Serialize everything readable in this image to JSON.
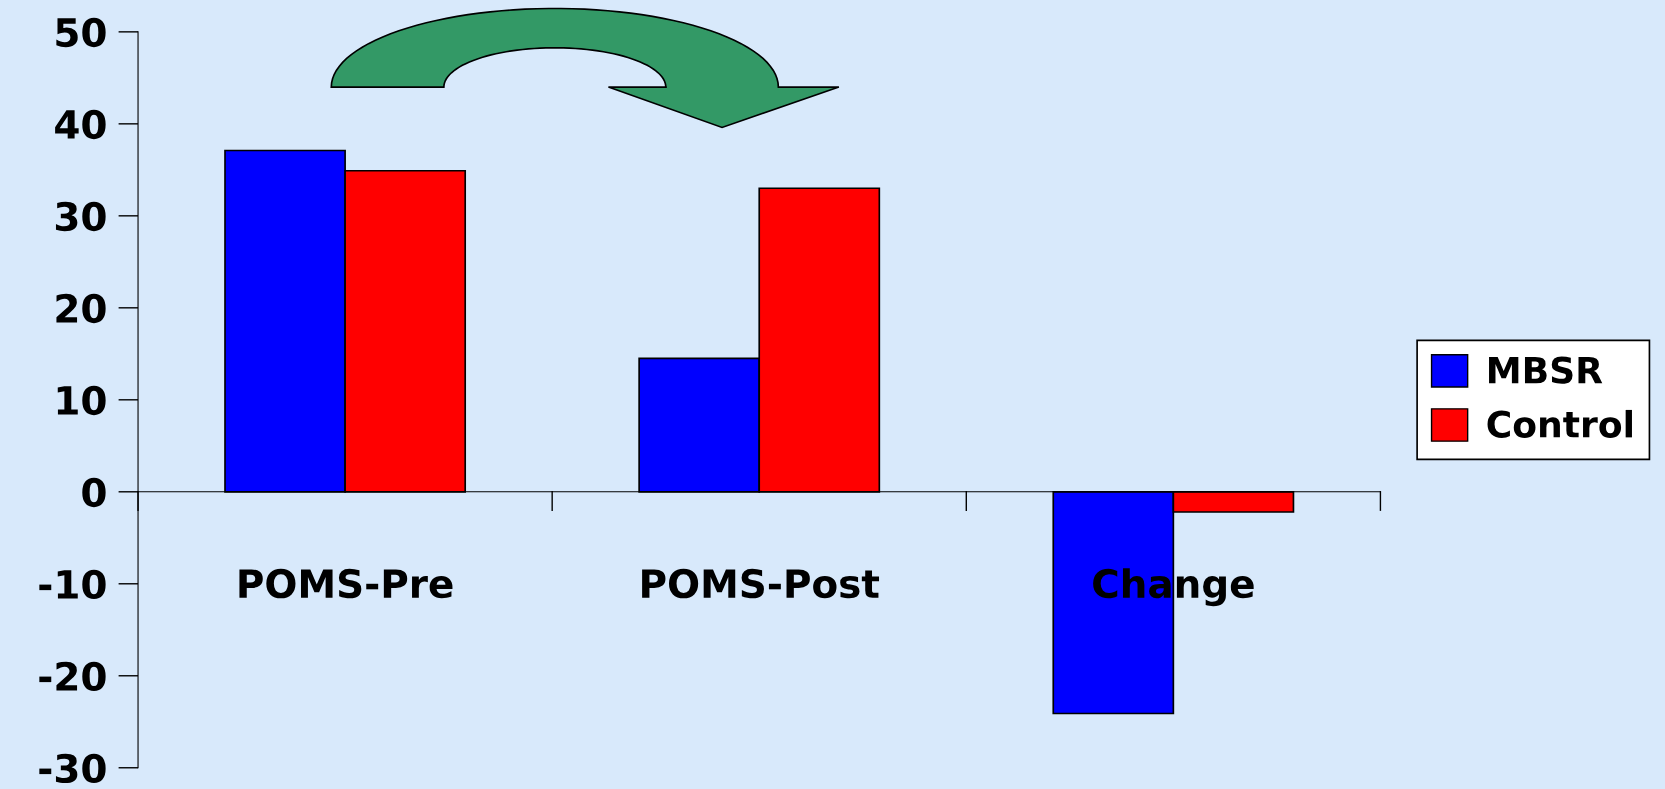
{
  "chart_data": {
    "type": "bar",
    "categories": [
      "POMS-Pre",
      "POMS-Post",
      "Change"
    ],
    "series": [
      {
        "name": "MBSR",
        "color": "#0000ff",
        "values": [
          37.1,
          14.5,
          -24.1
        ]
      },
      {
        "name": "Control",
        "color": "#ff0000",
        "values": [
          34.9,
          33.0,
          -2.2
        ]
      }
    ],
    "ylim": [
      -30,
      50
    ],
    "yticks": [
      -30,
      -20,
      -10,
      0,
      10,
      20,
      30,
      40,
      50
    ],
    "legend": "right"
  }
}
